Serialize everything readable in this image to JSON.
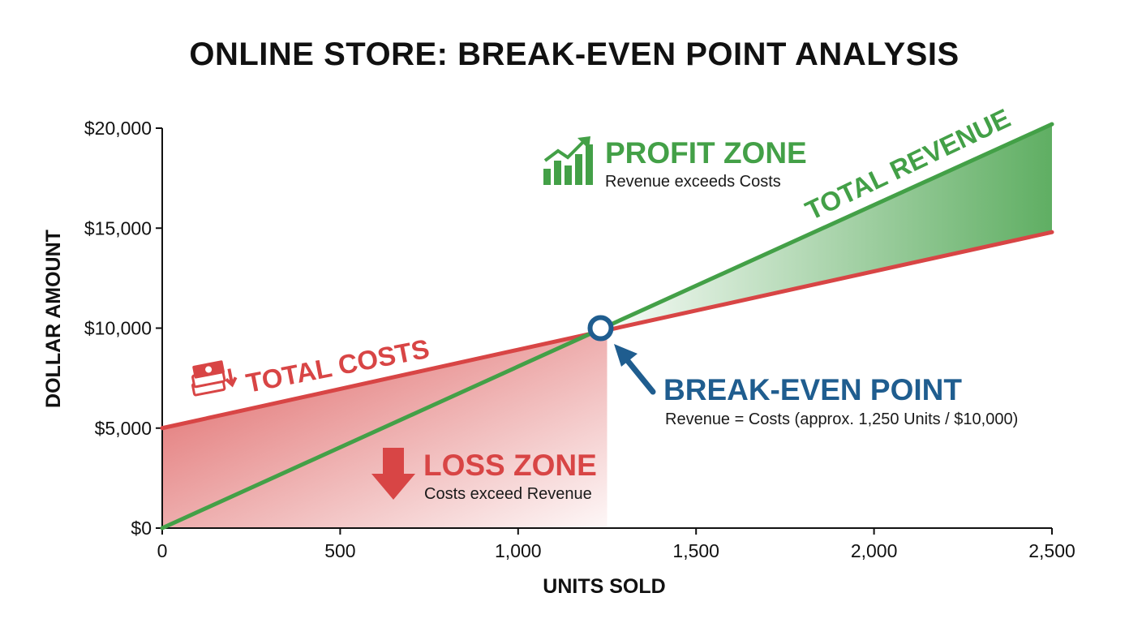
{
  "colors": {
    "revenue": "#43a047",
    "costs": "#d84545",
    "breakeven": "#1f5d8f",
    "profit_text": "#43a047",
    "loss_text": "#d84545",
    "axis": "#111111"
  },
  "icons": {
    "profit": "bar-chart-up-icon",
    "loss": "down-arrow-icon",
    "costs": "money-stack-down-icon",
    "breakeven": "pointer-arrow-icon"
  },
  "chart_data": {
    "type": "line",
    "title": "ONLINE STORE: BREAK-EVEN POINT ANALYSIS",
    "xlabel": "UNITS SOLD",
    "ylabel": "DOLLAR AMOUNT",
    "xlim": [
      0,
      2500
    ],
    "ylim": [
      0,
      20000
    ],
    "x_ticks": [
      0,
      500,
      1000,
      1500,
      2000,
      2500
    ],
    "x_tick_labels": [
      "0",
      "500",
      "1,000",
      "1,500",
      "2,000",
      "2,500"
    ],
    "y_ticks": [
      0,
      5000,
      10000,
      15000,
      20000
    ],
    "y_tick_labels": [
      "$0",
      "$5,000",
      "$10,000",
      "$15,000",
      "$20,000"
    ],
    "grid": false,
    "series": [
      {
        "name": "TOTAL REVENUE",
        "x": [
          0,
          2500
        ],
        "y": [
          0,
          20200
        ]
      },
      {
        "name": "TOTAL COSTS",
        "x": [
          0,
          1250,
          2500
        ],
        "y": [
          5000,
          9900,
          14800
        ]
      }
    ],
    "break_even": {
      "x": 1250,
      "y": 10000
    },
    "annotations": {
      "profit_zone_title": "PROFIT ZONE",
      "profit_zone_sub": "Revenue exceeds Costs",
      "loss_zone_title": "LOSS ZONE",
      "loss_zone_sub": "Costs exceed Revenue",
      "break_even_title": "BREAK-EVEN POINT",
      "break_even_sub": "Revenue = Costs (approx. 1,250 Units / $10,000)"
    }
  }
}
